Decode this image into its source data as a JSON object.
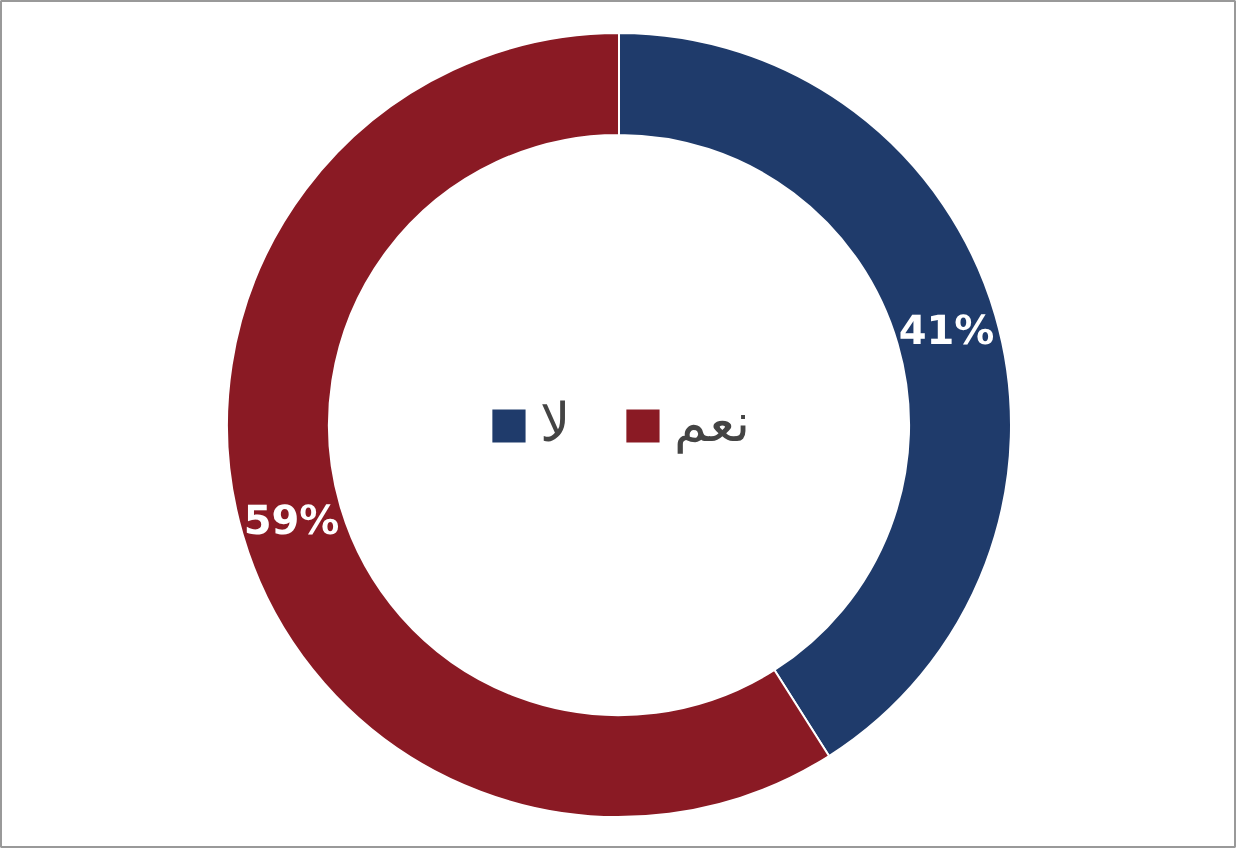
{
  "chart_data": {
    "type": "donut",
    "categories": [
      "لا",
      "نعم"
    ],
    "values": [
      41,
      59
    ],
    "colors": [
      "#1f3b6b",
      "#8a1a24"
    ],
    "value_labels": [
      "41%",
      "59%"
    ],
    "legend": "center"
  }
}
